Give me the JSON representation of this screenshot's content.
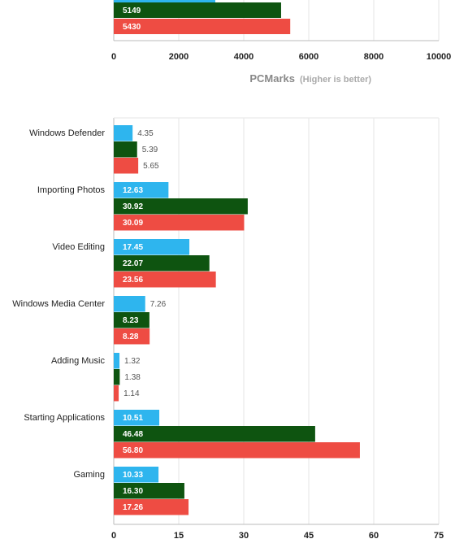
{
  "colors": {
    "series1": "#2eb5ee",
    "series2": "#0e5410",
    "series3": "#ee4c43",
    "grid": "#e6e6e6"
  },
  "top_chart": {
    "axis_title": "PCMarks",
    "axis_note": "(Higher is better)"
  },
  "chart_data": [
    {
      "type": "bar",
      "orientation": "horizontal",
      "xlim": [
        0,
        10000
      ],
      "ticks": [
        "0",
        "2000",
        "4000",
        "6000",
        "8000",
        "10000"
      ],
      "xlabel": "PCMarks (Higher is better)",
      "grid": true,
      "series": [
        {
          "color": "#0e5410",
          "values": [
            5149
          ]
        },
        {
          "color": "#ee4c43",
          "values": [
            5430
          ]
        }
      ],
      "partial_series": {
        "color": "#2eb5ee",
        "note": "bar cropped at top of image"
      }
    },
    {
      "type": "bar",
      "orientation": "horizontal",
      "xlim": [
        0,
        75
      ],
      "ticks": [
        "0",
        "15",
        "30",
        "45",
        "60",
        "75"
      ],
      "grid": true,
      "categories": [
        "Windows Defender",
        "Importing Photos",
        "Video Editing",
        "Windows Media Center",
        "Adding Music",
        "Starting Applications",
        "Gaming"
      ],
      "series": [
        {
          "color": "#2eb5ee",
          "values": [
            4.35,
            12.63,
            17.45,
            7.26,
            1.32,
            10.51,
            10.33
          ],
          "labels": [
            "4.35",
            "12.63",
            "17.45",
            "7.26",
            "1.32",
            "10.51",
            "10.33"
          ]
        },
        {
          "color": "#0e5410",
          "values": [
            5.39,
            30.92,
            22.07,
            8.23,
            1.38,
            46.48,
            16.3
          ],
          "labels": [
            "5.39",
            "30.92",
            "22.07",
            "8.23",
            "1.38",
            "46.48",
            "16.30"
          ]
        },
        {
          "color": "#ee4c43",
          "values": [
            5.65,
            30.09,
            23.56,
            8.28,
            1.14,
            56.8,
            17.26
          ],
          "labels": [
            "5.65",
            "30.09",
            "23.56",
            "8.28",
            "1.14",
            "56.80",
            "17.26"
          ]
        }
      ]
    }
  ]
}
